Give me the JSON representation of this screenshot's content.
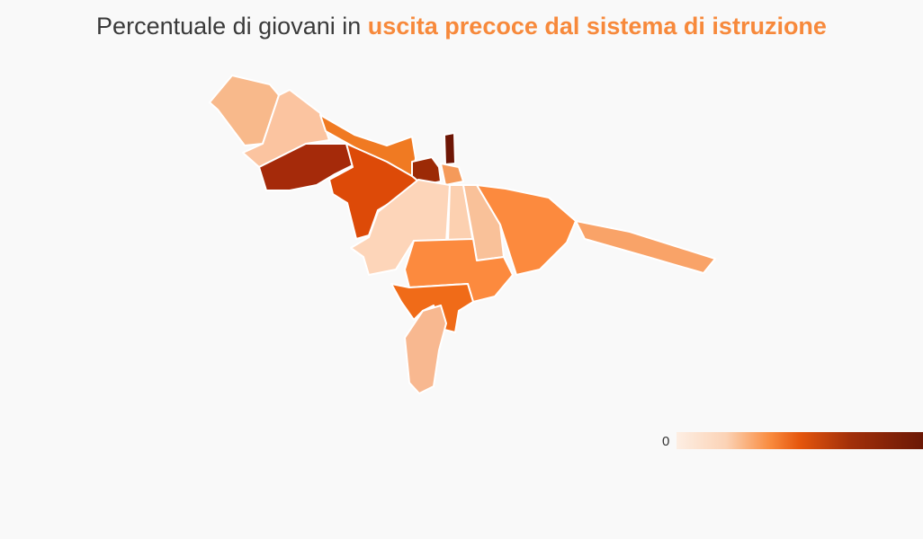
{
  "title": {
    "text": "Percentuale di giovani in",
    "highlight": "uscita precoce dal sistema di istruzione"
  },
  "legend": {
    "min_label": 0
  }
}
